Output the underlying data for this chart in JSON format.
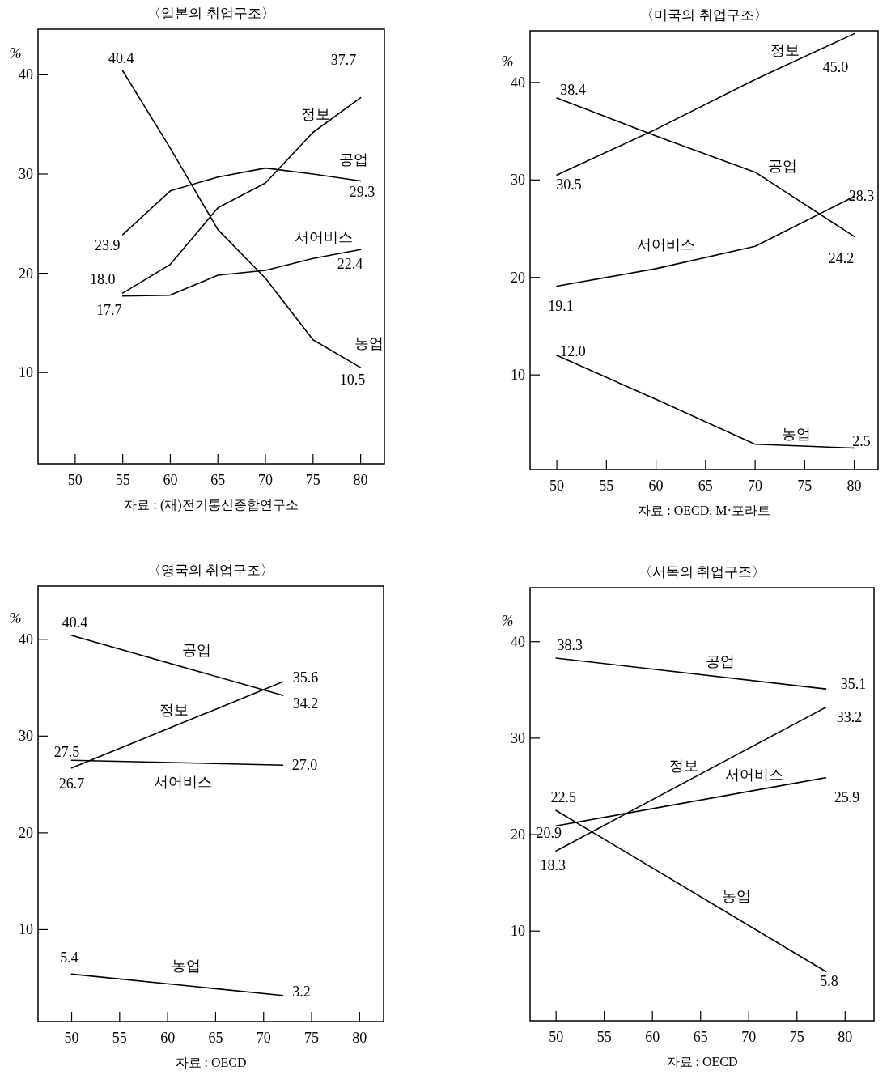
{
  "chart_data": [
    {
      "type": "line",
      "title": "〈일본의 취업구조〉",
      "ylabel": "%",
      "annotations": [
        "자료 : (재)전기통신종합연구소"
      ],
      "xlim": [
        46.1,
        82.5
      ],
      "ylim": [
        0.8,
        44.6
      ],
      "xticks": [
        50,
        55,
        60,
        65,
        70,
        75,
        80
      ],
      "yticks": [
        10,
        20,
        30,
        40
      ],
      "series": [
        {
          "name": "정보",
          "color": "#000000",
          "x": [
            55,
            60,
            65,
            70,
            75,
            80
          ],
          "values": [
            18.0,
            20.9,
            26.6,
            29.1,
            34.2,
            37.7
          ],
          "value_labels": [
            "18.0",
            null,
            null,
            null,
            null,
            "37.7"
          ]
        },
        {
          "name": "공업",
          "color": "#000000",
          "x": [
            55,
            60,
            65,
            70,
            75,
            80
          ],
          "values": [
            23.9,
            28.3,
            29.7,
            30.6,
            30.0,
            29.3
          ],
          "value_labels": [
            "23.9",
            null,
            null,
            null,
            null,
            "29.3"
          ]
        },
        {
          "name": "서어비스",
          "color": "#000000",
          "x": [
            55,
            60,
            65,
            70,
            75,
            80
          ],
          "values": [
            17.7,
            17.8,
            19.8,
            20.3,
            21.5,
            22.4
          ],
          "value_labels": [
            "17.7",
            null,
            null,
            null,
            null,
            "22.4"
          ]
        },
        {
          "name": "농업",
          "color": "#000000",
          "x": [
            55,
            60,
            65,
            70,
            75,
            80
          ],
          "values": [
            40.4,
            32.6,
            24.4,
            19.5,
            13.3,
            10.5
          ],
          "value_labels": [
            "40.4",
            null,
            null,
            null,
            null,
            "10.5"
          ]
        }
      ]
    },
    {
      "type": "line",
      "title": "〈미국의 취업구조〉",
      "ylabel": "%",
      "annotations": [
        "자료 : OECD, M·포라트"
      ],
      "xlim": [
        47.3,
        82.4
      ],
      "ylim": [
        0.3,
        45.3
      ],
      "xticks": [
        50,
        55,
        60,
        65,
        70,
        75,
        80
      ],
      "yticks": [
        10,
        20,
        30,
        40
      ],
      "series": [
        {
          "name": "정보",
          "color": "#000000",
          "x": [
            50,
            60,
            70,
            80
          ],
          "values": [
            30.5,
            35.2,
            40.3,
            45.0
          ],
          "value_labels": [
            "30.5",
            null,
            null,
            "45.0"
          ]
        },
        {
          "name": "공업",
          "color": "#000000",
          "x": [
            50,
            60,
            70,
            80
          ],
          "values": [
            38.4,
            34.5,
            30.8,
            24.2
          ],
          "value_labels": [
            "38.4",
            null,
            null,
            "24.2"
          ]
        },
        {
          "name": "서어비스",
          "color": "#000000",
          "x": [
            50,
            60,
            70,
            80
          ],
          "values": [
            19.1,
            20.9,
            23.2,
            28.3
          ],
          "value_labels": [
            "19.1",
            null,
            null,
            "28.3"
          ]
        },
        {
          "name": "농업",
          "color": "#000000",
          "x": [
            50,
            60,
            70,
            80
          ],
          "values": [
            12.0,
            7.5,
            2.9,
            2.5
          ],
          "value_labels": [
            "12.0",
            null,
            null,
            "2.5"
          ]
        }
      ]
    },
    {
      "type": "line",
      "title": "〈영국의 취업구조〉",
      "ylabel": "%",
      "annotations": [
        "자료 : OECD"
      ],
      "xlim": [
        46.5,
        82.5
      ],
      "ylim": [
        0.5,
        45.5
      ],
      "xticks": [
        50,
        55,
        60,
        65,
        70,
        75,
        80
      ],
      "yticks": [
        10,
        20,
        30,
        40
      ],
      "series": [
        {
          "name": "정보",
          "color": "#000000",
          "x": [
            50,
            72
          ],
          "values": [
            26.7,
            35.6
          ],
          "value_labels": [
            "26.7",
            "35.6"
          ]
        },
        {
          "name": "공업",
          "color": "#000000",
          "x": [
            50,
            72
          ],
          "values": [
            40.4,
            34.2
          ],
          "value_labels": [
            "40.4",
            "34.2"
          ]
        },
        {
          "name": "서어비스",
          "color": "#000000",
          "x": [
            50,
            72
          ],
          "values": [
            27.5,
            27.0
          ],
          "value_labels": [
            "27.5",
            "27.0"
          ]
        },
        {
          "name": "농업",
          "color": "#000000",
          "x": [
            50,
            72
          ],
          "values": [
            5.4,
            3.2
          ],
          "value_labels": [
            "5.4",
            "3.2"
          ]
        }
      ]
    },
    {
      "type": "line",
      "title": "〈서독의 취업구조〉",
      "ylabel": "%",
      "annotations": [
        "자료 : OECD"
      ],
      "xlim": [
        47.3,
        83.0
      ],
      "ylim": [
        0.7,
        45.6
      ],
      "xticks": [
        50,
        55,
        60,
        65,
        70,
        75,
        80
      ],
      "yticks": [
        10,
        20,
        30,
        40
      ],
      "series": [
        {
          "name": "정보",
          "color": "#000000",
          "x": [
            50,
            78
          ],
          "values": [
            18.3,
            33.2
          ],
          "value_labels": [
            "18.3",
            "33.2"
          ]
        },
        {
          "name": "공업",
          "color": "#000000",
          "x": [
            50,
            78
          ],
          "values": [
            38.3,
            35.1
          ],
          "value_labels": [
            "38.3",
            "35.1"
          ]
        },
        {
          "name": "서어비스",
          "color": "#000000",
          "x": [
            50,
            78
          ],
          "values": [
            20.9,
            25.9
          ],
          "value_labels": [
            "20.9",
            "25.9"
          ]
        },
        {
          "name": "농업",
          "color": "#000000",
          "x": [
            50,
            78
          ],
          "values": [
            22.5,
            5.8
          ],
          "value_labels": [
            "22.5",
            "5.8"
          ]
        }
      ]
    }
  ]
}
